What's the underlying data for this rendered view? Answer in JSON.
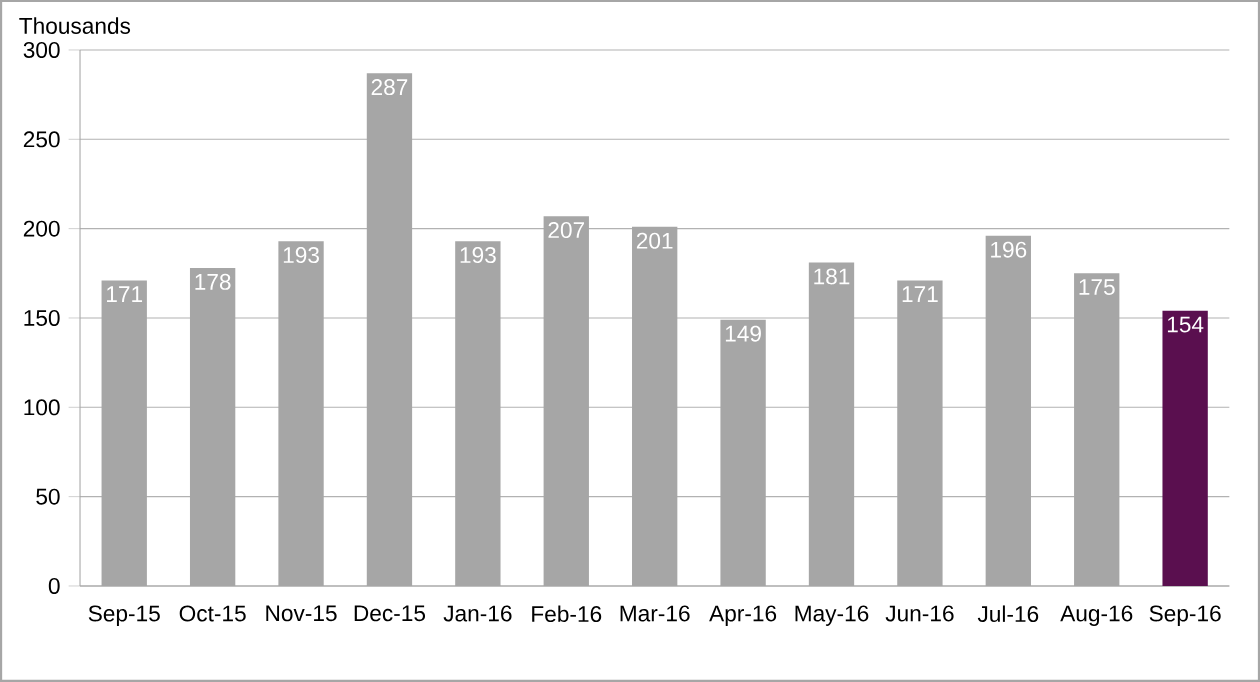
{
  "chart_data": {
    "type": "bar",
    "ylabel": "Thousands",
    "categories": [
      "Sep-15",
      "Oct-15",
      "Nov-15",
      "Dec-15",
      "Jan-16",
      "Feb-16",
      "Mar-16",
      "Apr-16",
      "May-16",
      "Jun-16",
      "Jul-16",
      "Aug-16",
      "Sep-16"
    ],
    "values": [
      171,
      178,
      193,
      287,
      193,
      207,
      201,
      149,
      181,
      171,
      196,
      175,
      154
    ],
    "colors": [
      "#a6a6a6",
      "#a6a6a6",
      "#a6a6a6",
      "#a6a6a6",
      "#a6a6a6",
      "#a6a6a6",
      "#a6a6a6",
      "#a6a6a6",
      "#a6a6a6",
      "#a6a6a6",
      "#a6a6a6",
      "#a6a6a6",
      "#5a0f4f"
    ],
    "ylim": [
      0,
      300
    ],
    "yticks": [
      0,
      50,
      100,
      150,
      200,
      250,
      300
    ],
    "grid": "y",
    "data_labels": true
  }
}
